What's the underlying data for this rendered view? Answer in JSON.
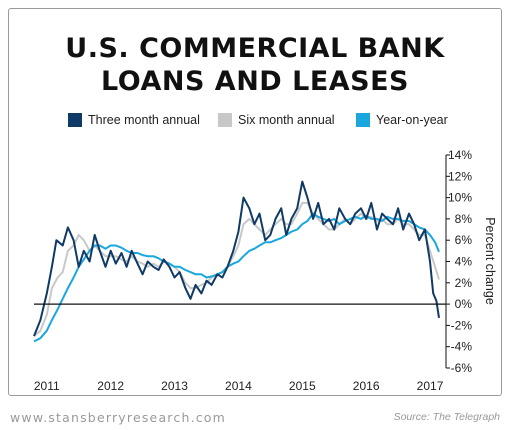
{
  "header": {
    "title_line1": "U.S. COMMERCIAL BANK",
    "title_line2": "LOANS AND LEASES"
  },
  "legend": [
    {
      "label": "Three month annual",
      "color": "#0f3a66"
    },
    {
      "label": "Six month annual",
      "color": "#c8c8c8"
    },
    {
      "label": "Year-on-year",
      "color": "#1aa7dd"
    }
  ],
  "footer": {
    "website": "www.stansberryresearch.com",
    "source": "Source: The Telegraph"
  },
  "chart_data": {
    "type": "line",
    "ylabel": "Percent change",
    "xlim": [
      2010.8,
      2017.25
    ],
    "ylim": [
      -6,
      14
    ],
    "ytick_labels": [
      "-6%",
      "-4%",
      "-2%",
      "0%",
      "2%",
      "4%",
      "6%",
      "8%",
      "10%",
      "12%",
      "14%"
    ],
    "xtick_labels": [
      "2011",
      "2012",
      "2013",
      "2014",
      "2015",
      "2016",
      "2017"
    ],
    "xticks": [
      2011,
      2012,
      2013,
      2014,
      2015,
      2016,
      2017
    ],
    "zero_line": true,
    "grid": false,
    "legend_position": "top",
    "series": [
      {
        "name": "Three month annual",
        "color": "#0f3a66",
        "x": [
          2010.8,
          2010.9,
          2011.0,
          2011.08,
          2011.15,
          2011.25,
          2011.33,
          2011.42,
          2011.5,
          2011.58,
          2011.67,
          2011.75,
          2011.83,
          2011.92,
          2012.0,
          2012.08,
          2012.17,
          2012.25,
          2012.33,
          2012.42,
          2012.5,
          2012.58,
          2012.67,
          2012.75,
          2012.83,
          2012.92,
          2013.0,
          2013.08,
          2013.17,
          2013.25,
          2013.33,
          2013.42,
          2013.5,
          2013.58,
          2013.67,
          2013.75,
          2013.83,
          2013.92,
          2014.0,
          2014.08,
          2014.17,
          2014.25,
          2014.33,
          2014.42,
          2014.5,
          2014.58,
          2014.67,
          2014.75,
          2014.83,
          2014.92,
          2015.0,
          2015.08,
          2015.17,
          2015.25,
          2015.33,
          2015.42,
          2015.5,
          2015.58,
          2015.67,
          2015.75,
          2015.83,
          2015.92,
          2016.0,
          2016.08,
          2016.17,
          2016.25,
          2016.33,
          2016.42,
          2016.5,
          2016.58,
          2016.67,
          2016.75,
          2016.83,
          2016.92,
          2017.0,
          2017.05,
          2017.1,
          2017.14
        ],
        "values": [
          -3.0,
          -1.5,
          1.0,
          3.5,
          6.0,
          5.5,
          7.2,
          6.0,
          3.5,
          5.0,
          4.0,
          6.5,
          5.0,
          3.5,
          5.0,
          3.8,
          4.8,
          3.5,
          5.0,
          3.8,
          2.8,
          4.0,
          3.5,
          3.2,
          4.2,
          3.5,
          2.5,
          3.0,
          1.5,
          0.5,
          1.8,
          1.0,
          2.2,
          1.8,
          2.8,
          2.5,
          3.5,
          5.0,
          6.8,
          10.0,
          9.0,
          7.5,
          8.5,
          6.0,
          6.5,
          8.0,
          9.0,
          6.5,
          8.0,
          9.0,
          11.5,
          10.0,
          8.0,
          9.5,
          7.5,
          8.0,
          7.0,
          9.0,
          8.0,
          7.5,
          8.5,
          9.0,
          8.0,
          9.5,
          7.0,
          8.5,
          8.0,
          7.5,
          9.0,
          7.0,
          8.5,
          7.5,
          6.0,
          7.0,
          4.0,
          1.0,
          0.3,
          -1.3
        ]
      },
      {
        "name": "Six month annual",
        "color": "#c8c8c8",
        "x": [
          2010.8,
          2010.9,
          2011.0,
          2011.08,
          2011.17,
          2011.25,
          2011.33,
          2011.42,
          2011.5,
          2011.58,
          2011.67,
          2011.75,
          2011.83,
          2011.92,
          2012.0,
          2012.08,
          2012.17,
          2012.25,
          2012.33,
          2012.42,
          2012.5,
          2012.58,
          2012.67,
          2012.75,
          2012.83,
          2012.92,
          2013.0,
          2013.08,
          2013.17,
          2013.25,
          2013.33,
          2013.42,
          2013.5,
          2013.58,
          2013.67,
          2013.75,
          2013.83,
          2013.92,
          2014.0,
          2014.08,
          2014.17,
          2014.25,
          2014.33,
          2014.42,
          2014.5,
          2014.58,
          2014.67,
          2014.75,
          2014.83,
          2014.92,
          2015.0,
          2015.08,
          2015.17,
          2015.25,
          2015.33,
          2015.42,
          2015.5,
          2015.58,
          2015.67,
          2015.75,
          2015.83,
          2015.92,
          2016.0,
          2016.08,
          2016.17,
          2016.25,
          2016.33,
          2016.42,
          2016.5,
          2016.58,
          2016.67,
          2016.75,
          2016.83,
          2016.92,
          2017.0,
          2017.08,
          2017.14
        ],
        "values": [
          -3.0,
          -2.5,
          -1.0,
          1.5,
          2.5,
          3.0,
          5.0,
          5.5,
          6.5,
          6.0,
          5.0,
          5.5,
          5.0,
          4.5,
          4.5,
          4.5,
          4.2,
          4.0,
          4.5,
          4.0,
          3.8,
          3.5,
          3.8,
          3.5,
          4.0,
          3.8,
          3.5,
          3.0,
          2.0,
          1.5,
          1.5,
          1.8,
          2.0,
          2.5,
          2.8,
          3.0,
          3.5,
          4.5,
          5.5,
          7.5,
          8.0,
          7.5,
          7.0,
          6.5,
          7.0,
          7.5,
          8.0,
          7.5,
          7.5,
          8.5,
          9.5,
          9.5,
          8.5,
          8.0,
          7.5,
          7.0,
          7.0,
          7.5,
          8.0,
          7.5,
          8.0,
          8.5,
          8.0,
          8.2,
          7.8,
          8.0,
          7.5,
          7.5,
          8.0,
          7.5,
          7.5,
          7.0,
          6.5,
          6.5,
          5.0,
          3.5,
          2.3
        ]
      },
      {
        "name": "Year-on-year",
        "color": "#1aa7dd",
        "x": [
          2010.8,
          2010.9,
          2011.0,
          2011.08,
          2011.17,
          2011.25,
          2011.33,
          2011.42,
          2011.5,
          2011.58,
          2011.67,
          2011.75,
          2011.83,
          2011.92,
          2012.0,
          2012.08,
          2012.17,
          2012.25,
          2012.33,
          2012.42,
          2012.5,
          2012.58,
          2012.67,
          2012.75,
          2012.83,
          2012.92,
          2013.0,
          2013.08,
          2013.17,
          2013.25,
          2013.33,
          2013.42,
          2013.5,
          2013.58,
          2013.67,
          2013.75,
          2013.83,
          2013.92,
          2014.0,
          2014.08,
          2014.17,
          2014.25,
          2014.33,
          2014.42,
          2014.5,
          2014.58,
          2014.67,
          2014.75,
          2014.83,
          2014.92,
          2015.0,
          2015.08,
          2015.17,
          2015.25,
          2015.33,
          2015.42,
          2015.5,
          2015.58,
          2015.67,
          2015.75,
          2015.83,
          2015.92,
          2016.0,
          2016.08,
          2016.17,
          2016.25,
          2016.33,
          2016.42,
          2016.5,
          2016.58,
          2016.67,
          2016.75,
          2016.83,
          2016.92,
          2017.0,
          2017.08,
          2017.14
        ],
        "values": [
          -3.5,
          -3.2,
          -2.5,
          -1.5,
          -0.5,
          0.5,
          1.5,
          2.5,
          3.5,
          4.2,
          5.0,
          5.5,
          5.5,
          5.2,
          5.5,
          5.5,
          5.3,
          5.0,
          4.8,
          4.8,
          4.6,
          4.5,
          4.5,
          4.3,
          4.0,
          3.8,
          3.5,
          3.5,
          3.2,
          3.0,
          2.8,
          2.8,
          2.5,
          2.6,
          2.8,
          3.0,
          3.5,
          3.8,
          4.0,
          4.5,
          5.0,
          5.2,
          5.5,
          5.8,
          5.8,
          6.0,
          6.2,
          6.5,
          6.8,
          7.0,
          7.5,
          7.8,
          8.5,
          8.2,
          8.0,
          7.8,
          8.0,
          7.5,
          7.8,
          8.0,
          8.2,
          8.0,
          8.3,
          8.0,
          8.0,
          7.8,
          8.2,
          8.0,
          8.0,
          7.8,
          7.8,
          7.5,
          7.2,
          7.0,
          6.5,
          5.8,
          4.9
        ]
      }
    ]
  }
}
